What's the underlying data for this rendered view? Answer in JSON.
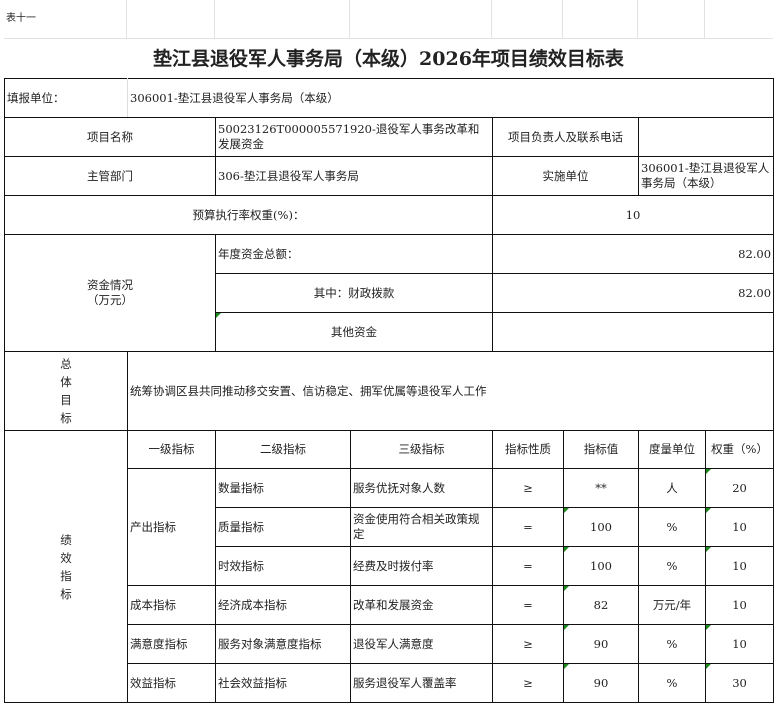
{
  "caption": "表十一",
  "title": "垫江县退役军人事务局（本级）2026年项目绩效目标表",
  "reporting_unit": {
    "label": "填报单位：",
    "value": "306001-垫江县退役军人事务局（本级）"
  },
  "project_name": {
    "label": "项目名称",
    "value": "50023126T000005571920-退役军人事务改革和发展资金"
  },
  "project_contact": {
    "label": "项目负责人及联系电话",
    "value": ""
  },
  "department": {
    "label": "主管部门",
    "value": "306-垫江县退役军人事务局"
  },
  "implementing_unit": {
    "label": "实施单位",
    "value": "306001-垫江县退役军人事务局（本级）"
  },
  "budget_weight": {
    "label": "预算执行率权重(%)：",
    "value": "10"
  },
  "funds": {
    "label": "资金情况\n（万元）",
    "annual_total_label": "年度资金总额：",
    "annual_total": "82.00",
    "fiscal_label": "其中：财政拨款",
    "fiscal": "82.00",
    "other_label": "其他资金",
    "other": ""
  },
  "overall_goal": {
    "label": "总体目标",
    "value": "统筹协调区县共同推动移交安置、信访稳定、拥军优属等退役军人工作"
  },
  "indicators": {
    "label": "绩效指标",
    "headers": [
      "一级指标",
      "二级指标",
      "三级指标",
      "指标性质",
      "指标值",
      "度量单位",
      "权重（%）"
    ],
    "rows": [
      {
        "level1": "产出指标",
        "level2": "数量指标",
        "level3": "服务优抚对象人数",
        "nature": "≥",
        "value": "**",
        "unit": "人",
        "weight": "20"
      },
      {
        "level1": "产出指标",
        "level2": "质量指标",
        "level3": "资金使用符合相关政策规定",
        "nature": "=",
        "value": "100",
        "unit": "%",
        "weight": "10"
      },
      {
        "level1": "产出指标",
        "level2": "时效指标",
        "level3": "经费及时拨付率",
        "nature": "=",
        "value": "100",
        "unit": "%",
        "weight": "10"
      },
      {
        "level1": "成本指标",
        "level2": "经济成本指标",
        "level3": "改革和发展资金",
        "nature": "=",
        "value": "82",
        "unit": "万元/年",
        "weight": "10"
      },
      {
        "level1": "满意度指标",
        "level2": "服务对象满意度指标",
        "level3": "退役军人满意度",
        "nature": "≥",
        "value": "90",
        "unit": "%",
        "weight": "10"
      },
      {
        "level1": "效益指标",
        "level2": "社会效益指标",
        "level3": "服务退役军人覆盖率",
        "nature": "≥",
        "value": "90",
        "unit": "%",
        "weight": "30"
      }
    ]
  }
}
